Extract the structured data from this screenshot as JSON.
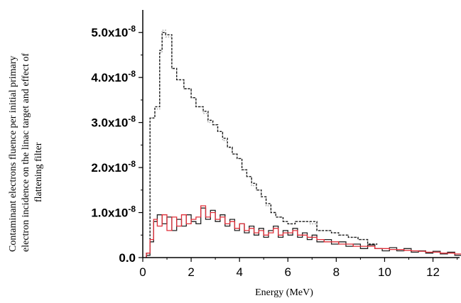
{
  "chart_data": {
    "type": "line",
    "title": "",
    "xlabel": "Energy (MeV)",
    "ylabel_lines": [
      "Contaminant electrons fluence per initial primary",
      "electron incidence on the linac target and effect of",
      "flattening filter"
    ],
    "xlim": [
      0,
      13.1
    ],
    "ylim": [
      0,
      5.5e-08
    ],
    "x_ticks": [
      0,
      2,
      4,
      6,
      8,
      10,
      12
    ],
    "y_ticks": [
      0,
      1e-08,
      2e-08,
      3e-08,
      4e-08,
      5e-08
    ],
    "y_tick_labels": [
      "0.0",
      "1.0x10-8",
      "2.0x10-8",
      "3.0x10-8",
      "4.0x10-8",
      "5.0x10-8"
    ],
    "series": [
      {
        "step": true,
        "color": "#a0a0a0",
        "dash": "1.5,2",
        "x": [
          0.15,
          0.3,
          0.5,
          0.7,
          0.8,
          0.95,
          1.2,
          1.4,
          1.7,
          2.0,
          2.2,
          2.5,
          2.7,
          2.9,
          3.1,
          3.3,
          3.5,
          3.7,
          3.9,
          4.1,
          4.3,
          4.5,
          4.7,
          4.9,
          5.1,
          5.3,
          5.5,
          5.8,
          6.0,
          6.3,
          6.6,
          6.9,
          7.2,
          7.5,
          7.8,
          8.1,
          8.5,
          8.9,
          9.3
        ],
        "values": [
          1e-09,
          3.1e-08,
          3.3e-08,
          4.55e-08,
          5.05e-08,
          4.9e-08,
          4.2e-08,
          3.95e-08,
          3.75e-08,
          3.55e-08,
          3.35e-08,
          3.2e-08,
          3e-08,
          2.95e-08,
          2.8e-08,
          2.6e-08,
          2.45e-08,
          2.3e-08,
          2.2e-08,
          1.95e-08,
          1.8e-08,
          1.6e-08,
          1.5e-08,
          1.35e-08,
          1.15e-08,
          1e-08,
          9e-09,
          8e-09,
          7.5e-09,
          8e-09,
          8e-09,
          7.5e-09,
          6e-09,
          6e-09,
          5.5e-09,
          5e-09,
          4.5e-09,
          4e-09,
          3e-09
        ]
      },
      {
        "step": true,
        "color": "#1a1a1a",
        "dash": "3,2",
        "x": [
          0.15,
          0.3,
          0.5,
          0.7,
          0.8,
          0.95,
          1.2,
          1.4,
          1.7,
          2.0,
          2.2,
          2.5,
          2.7,
          2.9,
          3.1,
          3.3,
          3.5,
          3.7,
          3.9,
          4.1,
          4.3,
          4.5,
          4.7,
          4.9,
          5.1,
          5.3,
          5.5,
          5.8,
          6.0,
          6.3,
          6.6,
          6.9,
          7.2,
          7.5,
          7.8,
          8.1,
          8.5,
          8.9,
          9.3
        ],
        "values": [
          1e-09,
          3.1e-08,
          3.35e-08,
          4.6e-08,
          5e-08,
          4.95e-08,
          4.2e-08,
          3.95e-08,
          3.75e-08,
          3.55e-08,
          3.35e-08,
          3.25e-08,
          3.05e-08,
          2.95e-08,
          2.8e-08,
          2.65e-08,
          2.45e-08,
          2.3e-08,
          2.2e-08,
          1.95e-08,
          1.8e-08,
          1.65e-08,
          1.5e-08,
          1.35e-08,
          1.2e-08,
          1e-08,
          9e-09,
          8e-09,
          7.5e-09,
          8e-09,
          8e-09,
          8e-09,
          6e-09,
          6e-09,
          5.5e-09,
          5e-09,
          4.5e-09,
          4e-09,
          3e-09
        ]
      },
      {
        "step": true,
        "color": "#222222",
        "dash": "",
        "x": [
          0.15,
          0.3,
          0.45,
          0.6,
          0.8,
          1.0,
          1.2,
          1.4,
          1.6,
          1.8,
          2.0,
          2.2,
          2.4,
          2.6,
          2.8,
          3.0,
          3.2,
          3.4,
          3.6,
          3.8,
          4.0,
          4.2,
          4.4,
          4.6,
          4.8,
          5.0,
          5.2,
          5.4,
          5.6,
          5.8,
          6.0,
          6.2,
          6.4,
          6.6,
          6.8,
          7.0,
          7.2,
          7.5,
          7.8,
          8.1,
          8.4,
          8.7,
          9.0,
          9.3,
          9.6,
          9.9,
          10.2,
          10.5,
          10.8,
          11.1,
          11.4,
          11.7,
          12.0,
          12.3,
          12.6,
          12.9
        ],
        "values": [
          5e-10,
          3.5e-09,
          8e-09,
          9.5e-09,
          7.5e-09,
          9e-09,
          6e-09,
          8.5e-09,
          7e-09,
          9.5e-09,
          8e-09,
          7.5e-09,
          1.1e-08,
          8.5e-09,
          1.05e-08,
          8e-09,
          9.5e-09,
          7e-09,
          8.5e-09,
          6e-09,
          7.5e-09,
          5.5e-09,
          7e-09,
          5e-09,
          6.5e-09,
          4.5e-09,
          6e-09,
          7e-09,
          4.5e-09,
          6e-09,
          5e-09,
          6.5e-09,
          4.5e-09,
          5.5e-09,
          4e-09,
          5e-09,
          3.5e-09,
          4e-09,
          3e-09,
          3.5e-09,
          2.5e-09,
          3e-09,
          2e-09,
          2.8e-09,
          2e-09,
          1.5e-09,
          2.2e-09,
          1.5e-09,
          2e-09,
          1.2e-09,
          1.5e-09,
          1e-09,
          1.4e-09,
          8e-10,
          1.2e-09,
          5e-10
        ]
      },
      {
        "step": true,
        "color": "#e0303a",
        "dash": "",
        "x": [
          0.15,
          0.3,
          0.45,
          0.6,
          0.8,
          1.0,
          1.2,
          1.4,
          1.6,
          1.8,
          2.0,
          2.2,
          2.4,
          2.6,
          2.8,
          3.0,
          3.2,
          3.4,
          3.6,
          3.8,
          4.0,
          4.2,
          4.4,
          4.6,
          4.8,
          5.0,
          5.2,
          5.4,
          5.6,
          5.8,
          6.0,
          6.2,
          6.4,
          6.6,
          6.8,
          7.0,
          7.2,
          7.5,
          7.8,
          8.1,
          8.4,
          8.7,
          9.0,
          9.3,
          9.6,
          9.9,
          10.2,
          10.5,
          10.8,
          11.1,
          11.4,
          11.7,
          12.0,
          12.3,
          12.6,
          12.9
        ],
        "values": [
          1e-09,
          4e-09,
          8.5e-09,
          7e-09,
          9.5e-09,
          6e-09,
          9e-09,
          7e-09,
          9.5e-09,
          7.5e-09,
          8.5e-09,
          9e-09,
          1.15e-08,
          9e-09,
          1e-08,
          8.5e-09,
          9e-09,
          7.5e-09,
          8e-09,
          6.5e-09,
          7.5e-09,
          6e-09,
          6.5e-09,
          5.5e-09,
          6e-09,
          5e-09,
          5.5e-09,
          6.5e-09,
          5e-09,
          5.5e-09,
          5.5e-09,
          6e-09,
          5e-09,
          5e-09,
          4.5e-09,
          4.5e-09,
          4e-09,
          3.5e-09,
          3.5e-09,
          3e-09,
          3e-09,
          2.5e-09,
          2.5e-09,
          2.5e-09,
          2e-09,
          2e-09,
          1.8e-09,
          1.8e-09,
          1.6e-09,
          1.5e-09,
          1.4e-09,
          1.2e-09,
          1.2e-09,
          1e-09,
          1e-09,
          8e-10
        ]
      }
    ]
  }
}
